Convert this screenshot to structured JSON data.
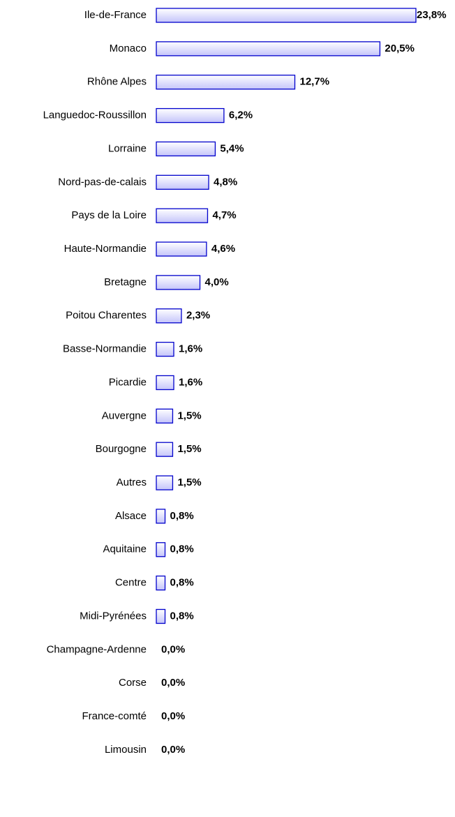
{
  "chart_data": {
    "type": "bar",
    "orientation": "horizontal",
    "color": "#0000cc",
    "categories": [
      "Ile-de-France",
      "Monaco",
      "Rhône Alpes",
      "Languedoc-Roussillon",
      "Lorraine",
      "Nord-pas-de-calais",
      "Pays de la Loire",
      "Haute-Normandie",
      "Bretagne",
      "Poitou Charentes",
      "Basse-Normandie",
      "Picardie",
      "Auvergne",
      "Bourgogne",
      "Autres",
      "Alsace",
      "Aquitaine",
      "Centre",
      "Midi-Pyrénées",
      "Champagne-Ardenne",
      "Corse",
      "France-comté",
      "Limousin"
    ],
    "values": [
      23.8,
      20.5,
      12.7,
      6.2,
      5.4,
      4.8,
      4.7,
      4.6,
      4.0,
      2.3,
      1.6,
      1.6,
      1.5,
      1.5,
      1.5,
      0.8,
      0.8,
      0.8,
      0.8,
      0.0,
      0.0,
      0.0,
      0.0
    ],
    "value_labels": [
      "23,8%",
      "20,5%",
      "12,7%",
      "6,2%",
      "5,4%",
      "4,8%",
      "4,7%",
      "4,6%",
      "4,0%",
      "2,3%",
      "1,6%",
      "1,6%",
      "1,5%",
      "1,5%",
      "1,5%",
      "0,8%",
      "0,8%",
      "0,8%",
      "0,8%",
      "0,0%",
      "0,0%",
      "0,0%",
      "0,0%"
    ]
  }
}
